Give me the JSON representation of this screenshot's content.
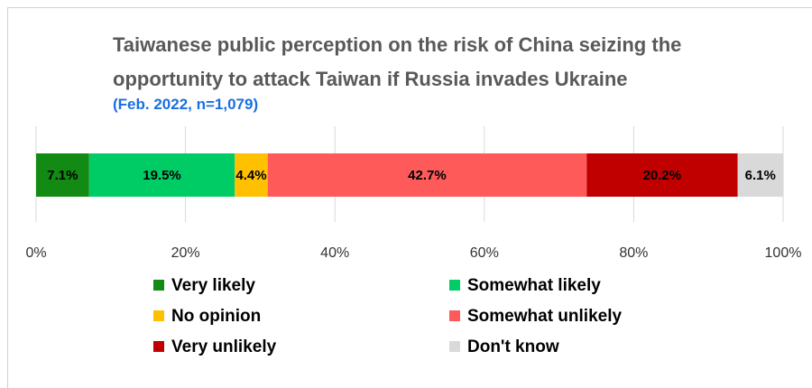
{
  "chart_data": {
    "type": "stacked-bar-horizontal",
    "title": "Taiwanese public perception on the risk of China seizing the opportunity to attack Taiwan if Russia invades Ukraine",
    "subtitle": "(Feb. 2022, n=1,079)",
    "series": [
      {
        "name": "Very likely",
        "color": "#138a13",
        "values": [
          7.1
        ],
        "value_labels": [
          "7.1%"
        ]
      },
      {
        "name": "Somewhat likely",
        "color": "#00cc66",
        "values": [
          19.5
        ],
        "value_labels": [
          "19.5%"
        ]
      },
      {
        "name": "No opinion",
        "color": "#ffc000",
        "values": [
          4.4
        ],
        "value_labels": [
          "4.4%"
        ]
      },
      {
        "name": "Somewhat unlikely",
        "color": "#ff5a5a",
        "values": [
          42.7
        ],
        "value_labels": [
          "42.7%"
        ]
      },
      {
        "name": "Very unlikely",
        "color": "#c00000",
        "values": [
          20.2
        ],
        "value_labels": [
          "20.2%"
        ]
      },
      {
        "name": "Don't know",
        "color": "#d9d9d9",
        "values": [
          6.1
        ],
        "value_labels": [
          "6.1%"
        ]
      }
    ],
    "xlim": [
      0,
      100
    ],
    "xticks": [
      {
        "value": 0,
        "label": "0%"
      },
      {
        "value": 20,
        "label": "20%"
      },
      {
        "value": 40,
        "label": "40%"
      },
      {
        "value": 60,
        "label": "60%"
      },
      {
        "value": 80,
        "label": "80%"
      },
      {
        "value": 100,
        "label": "100%"
      }
    ],
    "grid": true
  }
}
